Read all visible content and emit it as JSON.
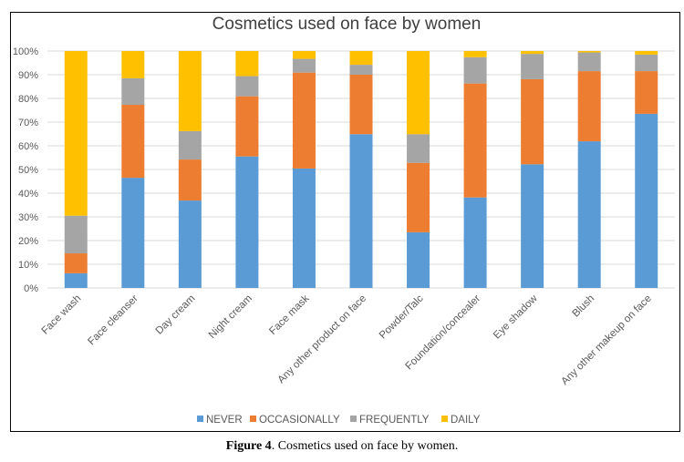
{
  "chart_data": {
    "type": "bar",
    "stacked": "percent",
    "title": "Cosmetics used on face by women",
    "xlabel": "",
    "ylabel": "",
    "ylim": [
      0,
      100
    ],
    "yticks": [
      "0%",
      "10%",
      "20%",
      "30%",
      "40%",
      "50%",
      "60%",
      "70%",
      "80%",
      "90%",
      "100%"
    ],
    "grid": true,
    "legend_position": "bottom",
    "categories": [
      "Face wash",
      "Face cleanser",
      "Day cream",
      "Night cream",
      "Face mask",
      "Any other product on face",
      "Powder/Talc",
      "Foundation/concealer",
      "Eye shadow",
      "Blush",
      "Any other makeup on face"
    ],
    "series": [
      {
        "name": "NEVER",
        "color": "#5B9BD5",
        "values": [
          6.2,
          46.5,
          36.9,
          55.5,
          50.4,
          64.9,
          23.5,
          38.2,
          52.2,
          61.9,
          73.5
        ]
      },
      {
        "name": "OCCASIONALLY",
        "color": "#ED7D31",
        "values": [
          8.4,
          30.8,
          17.3,
          25.4,
          40.5,
          25.1,
          29.3,
          48.1,
          35.9,
          29.6,
          18.0
        ]
      },
      {
        "name": "FREQUENTLY",
        "color": "#A5A5A5",
        "values": [
          15.9,
          11.2,
          12.0,
          8.5,
          5.8,
          4.2,
          12.1,
          11.1,
          10.7,
          7.9,
          7.0
        ]
      },
      {
        "name": "DAILY",
        "color": "#FFC000",
        "values": [
          69.5,
          11.5,
          33.8,
          10.6,
          3.3,
          5.8,
          35.1,
          2.6,
          1.2,
          0.6,
          1.5
        ]
      }
    ]
  },
  "caption": {
    "label": "Figure 4",
    "text": ". Cosmetics used on face by women."
  }
}
